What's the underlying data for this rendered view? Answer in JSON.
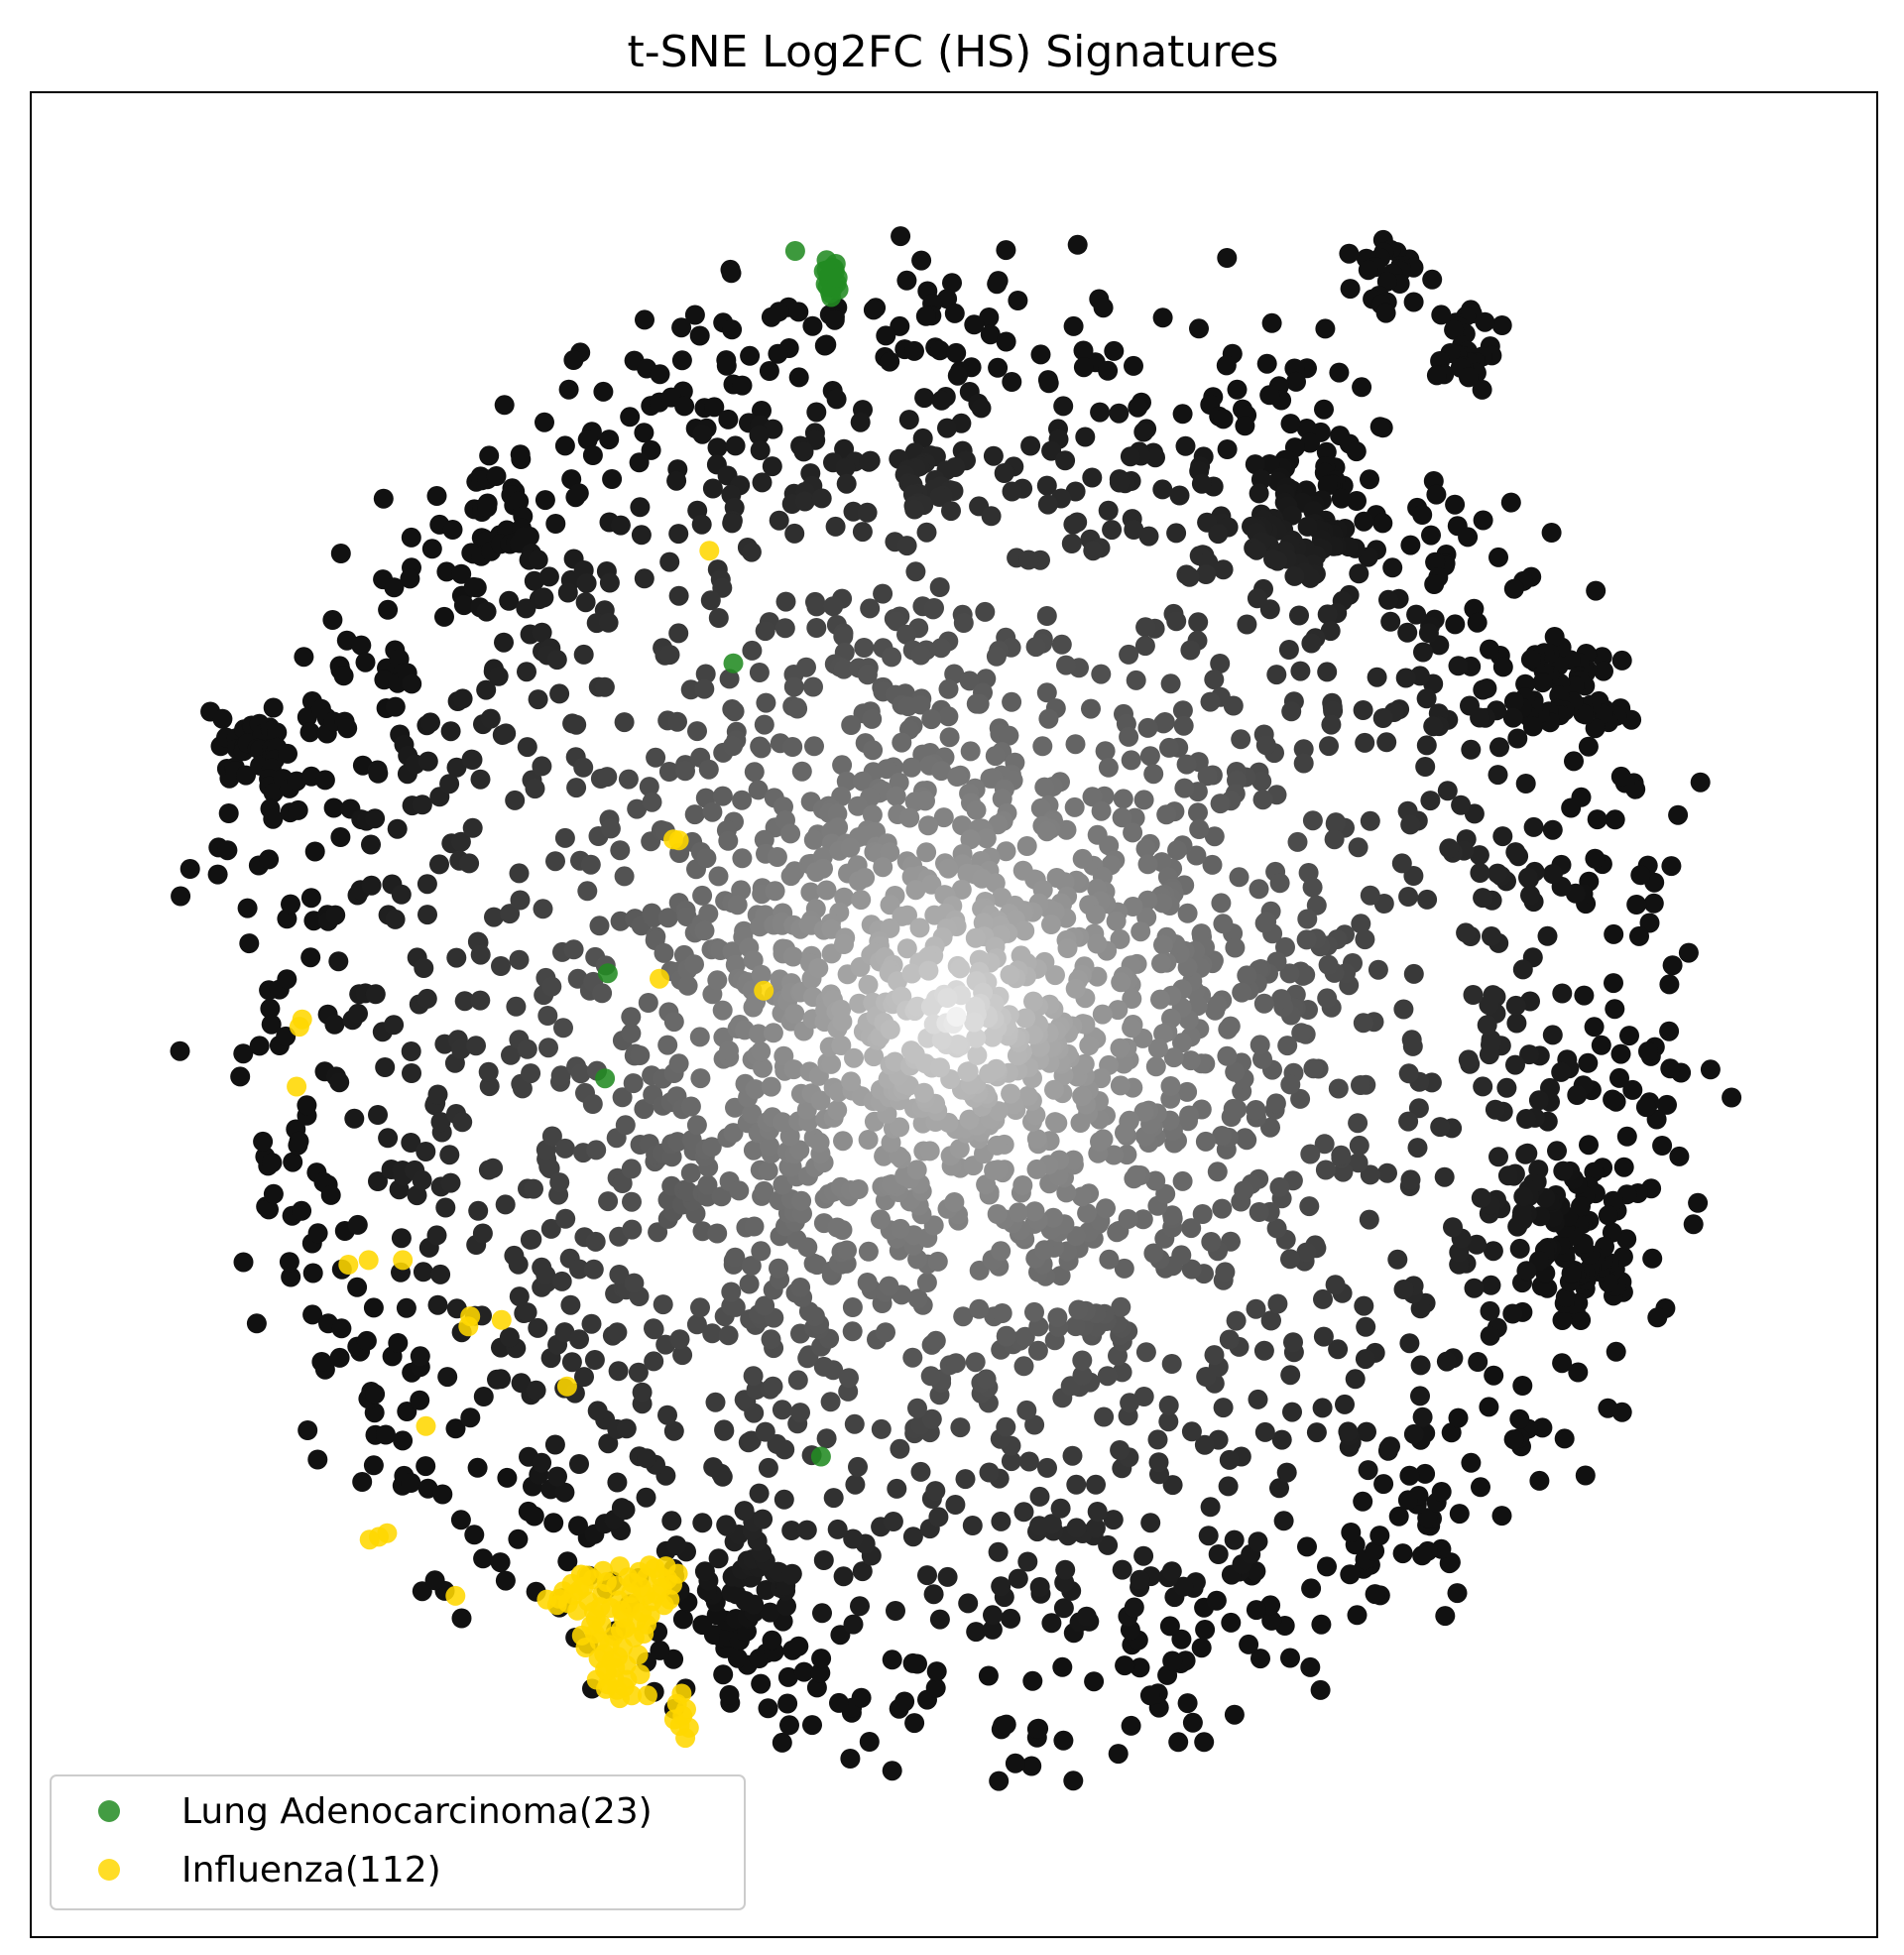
{
  "chart_data": {
    "type": "scatter",
    "title": "t-SNE Log2FC (HS) Signatures",
    "xlabel": "",
    "ylabel": "",
    "xlim": [
      -100,
      100
    ],
    "ylim": [
      -100,
      100
    ],
    "grid": false,
    "axis_ticks": false,
    "legend_position": "lower-left",
    "background_points": {
      "description_of_color": "grayscale by local density",
      "color_dense": "#ffffff",
      "color_sparse": "#111111",
      "count_approx": 3000
    },
    "series": [
      {
        "name": "Lung Adenocarcinoma(23)",
        "color": "#228b22",
        "points": [
          [
            -17.2,
            82.8
          ],
          [
            -13.8,
            81.8
          ],
          [
            -13.2,
            81.0
          ],
          [
            -13.6,
            80.0
          ],
          [
            -12.9,
            80.6
          ],
          [
            -13.5,
            79.6
          ],
          [
            -13.1,
            78.8
          ],
          [
            -13.4,
            78.2
          ],
          [
            -12.7,
            79.3
          ],
          [
            -13.0,
            80.9
          ],
          [
            -13.9,
            79.2
          ],
          [
            -12.5,
            78.6
          ],
          [
            -13.3,
            77.8
          ],
          [
            -12.8,
            81.4
          ],
          [
            -14.1,
            80.6
          ],
          [
            -13.7,
            78.9
          ],
          [
            -23.9,
            38.1
          ],
          [
            -37.5,
            4.5
          ],
          [
            -37.8,
            -6.9
          ],
          [
            -14.4,
            -47.9
          ],
          [
            -13.3,
            80.3
          ],
          [
            -13.8,
            80.7
          ],
          [
            -12.6,
            79.9
          ]
        ]
      },
      {
        "name": "Influenza(112)",
        "color": "#ffd700",
        "points": [
          [
            -26.5,
            50.3
          ],
          [
            -30.4,
            19.0
          ],
          [
            -29.8,
            18.9
          ],
          [
            -31.9,
            3.9
          ],
          [
            -20.6,
            2.6
          ],
          [
            -70.6,
            -0.5
          ],
          [
            -70.9,
            -1.3
          ],
          [
            -71.2,
            -7.8
          ],
          [
            -65.6,
            -27.1
          ],
          [
            -63.4,
            -26.6
          ],
          [
            -59.7,
            -26.6
          ],
          [
            -52.4,
            -32.7
          ],
          [
            -52.6,
            -33.8
          ],
          [
            -49.0,
            -33.1
          ],
          [
            -41.9,
            -40.3
          ],
          [
            -57.2,
            -44.6
          ],
          [
            -61.4,
            -56.2
          ],
          [
            -62.3,
            -56.6
          ],
          [
            -63.3,
            -56.9
          ],
          [
            -54.0,
            -63.0
          ],
          [
            -44.1,
            -63.4
          ],
          [
            -41.2,
            -62.9
          ],
          [
            -40.4,
            -60.7
          ],
          [
            -40.6,
            -62.4
          ],
          [
            -39.0,
            -64.7
          ],
          [
            -38.2,
            -66.1
          ],
          [
            -38.4,
            -67.9
          ],
          [
            -37.9,
            -69.3
          ],
          [
            -37.6,
            -71.2
          ],
          [
            -38.7,
            -72.1
          ],
          [
            -36.8,
            -72.0
          ],
          [
            -35.4,
            -72.1
          ],
          [
            -37.1,
            -70.0
          ],
          [
            -36.9,
            -67.4
          ],
          [
            -35.8,
            -65.4
          ],
          [
            -34.5,
            -63.8
          ],
          [
            -33.8,
            -64.8
          ],
          [
            -33.3,
            -66.1
          ],
          [
            -32.7,
            -63.6
          ],
          [
            -31.6,
            -62.1
          ],
          [
            -33.3,
            -61.0
          ],
          [
            -32.4,
            -60.0
          ],
          [
            -31.0,
            -61.2
          ],
          [
            -29.9,
            -60.6
          ],
          [
            -35.1,
            -64.2
          ],
          [
            -36.1,
            -66.7
          ],
          [
            -37.7,
            -73.1
          ],
          [
            -36.2,
            -74.1
          ],
          [
            -34.9,
            -73.8
          ],
          [
            -33.2,
            -73.8
          ],
          [
            -30.0,
            -74.7
          ],
          [
            -29.4,
            -76.0
          ],
          [
            -29.7,
            -77.1
          ],
          [
            -29.1,
            -78.4
          ],
          [
            -38.5,
            -69.8
          ],
          [
            -39.9,
            -68.6
          ],
          [
            -38.8,
            -65.5
          ],
          [
            -37.3,
            -68.3
          ],
          [
            -36.4,
            -69.6
          ],
          [
            -35.5,
            -70.5
          ],
          [
            -34.6,
            -67.5
          ],
          [
            -32.2,
            -62.8
          ],
          [
            -30.8,
            -63.4
          ],
          [
            -33.9,
            -62.1
          ],
          [
            -35.0,
            -62.7
          ],
          [
            -36.6,
            -61.9
          ],
          [
            -38.1,
            -62.8
          ],
          [
            -39.6,
            -63.6
          ],
          [
            -40.8,
            -64.6
          ],
          [
            -41.8,
            -63.8
          ],
          [
            -42.8,
            -63.3
          ],
          [
            -43.0,
            -64.0
          ],
          [
            -37.6,
            -61.5
          ],
          [
            -36.3,
            -63.5
          ],
          [
            -34.4,
            -65.7
          ],
          [
            -33.6,
            -67.1
          ],
          [
            -35.9,
            -68.6
          ],
          [
            -36.7,
            -70.8
          ],
          [
            -37.5,
            -72.6
          ],
          [
            -30.5,
            -61.8
          ],
          [
            -31.8,
            -60.9
          ],
          [
            -33.0,
            -59.7
          ],
          [
            -34.1,
            -60.4
          ],
          [
            -35.3,
            -61.0
          ],
          [
            -36.2,
            -59.8
          ],
          [
            -38.0,
            -60.3
          ],
          [
            -39.1,
            -61.2
          ],
          [
            -40.1,
            -62.0
          ],
          [
            -38.9,
            -67.1
          ],
          [
            -35.6,
            -66.5
          ],
          [
            -34.2,
            -69.4
          ],
          [
            -29.5,
            -73.6
          ],
          [
            -29.0,
            -75.3
          ],
          [
            -28.7,
            -77.3
          ],
          [
            -30.3,
            -76.4
          ],
          [
            -37.2,
            -64.3
          ],
          [
            -32.9,
            -65.1
          ],
          [
            -31.4,
            -64.0
          ],
          [
            -37.8,
            -71.0
          ],
          [
            -36.5,
            -73.2
          ],
          [
            -34.0,
            -71.5
          ],
          [
            -35.7,
            -72.9
          ],
          [
            -39.3,
            -66.2
          ],
          [
            -40.3,
            -67.3
          ],
          [
            -38.3,
            -64.2
          ],
          [
            -36.0,
            -64.6
          ],
          [
            -34.8,
            -61.6
          ],
          [
            -33.4,
            -62.9
          ],
          [
            -31.2,
            -59.8
          ],
          [
            -39.8,
            -60.8
          ],
          [
            -41.4,
            -61.7
          ],
          [
            -42.3,
            -62.5
          ]
        ]
      }
    ]
  }
}
